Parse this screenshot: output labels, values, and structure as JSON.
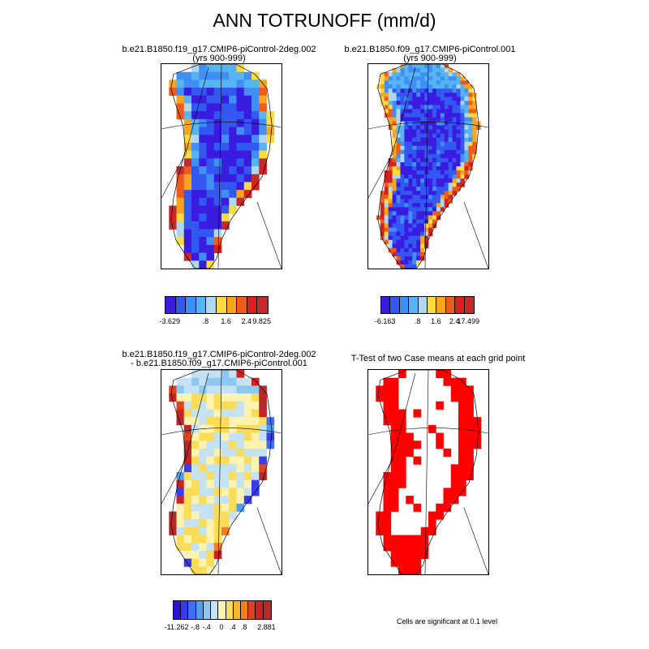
{
  "figure": {
    "title": "ANN TOTRUNOFF (mm/d)"
  },
  "panels": [
    {
      "id": "case1",
      "title_line1": "b.e21.B1850.f19_g17.CMIP6-piControl-2deg.002",
      "title_line2": "(yrs 900-999)",
      "colorbar": {
        "colors": [
          "#3a1ce0",
          "#3358f0",
          "#3f8ff6",
          "#56b4f0",
          "#aed8ee",
          "#fbdc3c",
          "#f7a51e",
          "#ee5b1a",
          "#d8201e",
          "#c42a2a"
        ],
        "labels": [
          "-3.629",
          ".8",
          "1.6",
          "2.4",
          "9.825"
        ]
      }
    },
    {
      "id": "case2",
      "title_line1": "b.e21.B1850.f09_g17.CMIP6-piControl.001",
      "title_line2": "(yrs 900-999)",
      "colorbar": {
        "colors": [
          "#3a1ce0",
          "#3358f0",
          "#3f8ff6",
          "#56b4f0",
          "#aed8ee",
          "#fbdc3c",
          "#f7a51e",
          "#ee5b1a",
          "#d8201e",
          "#c42a2a"
        ],
        "labels": [
          "-6.163",
          ".8",
          "1.6",
          "2.4",
          "17.499"
        ]
      }
    },
    {
      "id": "diff",
      "title_line1": "b.e21.B1850.f19_g17.CMIP6-piControl-2deg.002",
      "title_line2": "- b.e21.B1850.f09_g17.CMIP6-piControl.001",
      "colorbar": {
        "colors": [
          "#2a12d8",
          "#3a3cec",
          "#3f70f4",
          "#4e9ef2",
          "#8cc8f0",
          "#c4e2f2",
          "#fcf3b0",
          "#fbdc56",
          "#f9b430",
          "#f2801e",
          "#e0441c",
          "#cc2222",
          "#b82a2a"
        ],
        "labels": [
          "-11.262",
          "-.8",
          "-.4",
          "0",
          ".4",
          ".8",
          "2.881"
        ]
      }
    },
    {
      "id": "ttest",
      "title_line1": "T-Test of two Case means at each grid point",
      "note": "Cells are significant at 0.1 level",
      "sig_color": "#ff0000"
    }
  ]
}
